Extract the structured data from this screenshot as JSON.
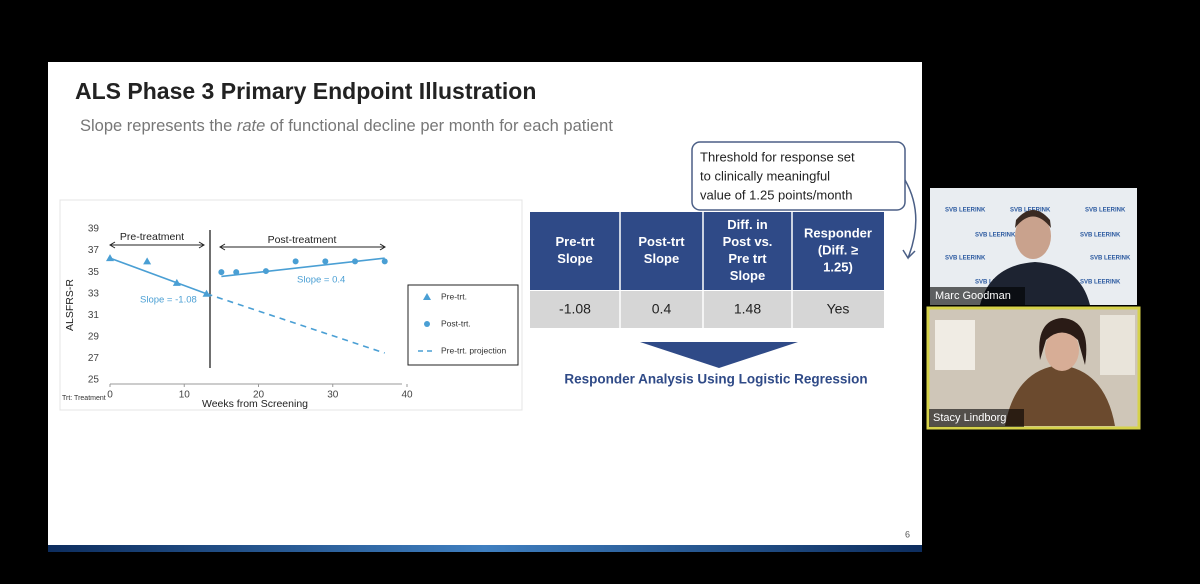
{
  "slide": {
    "title": "ALS Phase 3 Primary Endpoint Illustration",
    "subtitle": [
      "Slope represents the ",
      "rate",
      " of functional decline per month for each patient"
    ],
    "page_number": "6",
    "callout": [
      "Threshold for response set",
      "to clinically meaningful",
      "value of 1.25 points/month"
    ],
    "table": {
      "header": [
        [
          "Pre-trt",
          "Slope"
        ],
        [
          "Post-trt",
          "Slope"
        ],
        [
          "Diff. in",
          "Post vs.",
          "Pre trt",
          "Slope"
        ],
        [
          "Responder",
          "(Diff. ≥",
          "1.25)"
        ]
      ],
      "rows": [
        [
          "-1.08",
          "0.4",
          "1.48",
          "Yes"
        ]
      ]
    },
    "conclusion": "Responder Analysis Using Logistic Regression"
  },
  "chart_data": {
    "type": "scatter",
    "y_label": "ALSFRS-R",
    "x_label": "Weeks from Screening",
    "footnote": "Trt: Treatment",
    "annotations": [
      "Pre-treatment",
      "Post-treatment",
      "Slope = -1.08",
      "Slope = 0.4"
    ],
    "xlim": [
      0,
      40
    ],
    "xticks": [
      0,
      10,
      20,
      30,
      40
    ],
    "ylim": [
      25,
      39
    ],
    "yticks": [
      25,
      27,
      29,
      31,
      33,
      35,
      37,
      39
    ],
    "series": [
      {
        "name": "Pre-trt.",
        "color": "#4a9fd4",
        "marker": "triangle",
        "x": [
          0,
          5,
          9,
          13
        ],
        "values": [
          36.3,
          36.0,
          34.0,
          33.0
        ]
      },
      {
        "name": "Post-trt.",
        "color": "#4a9fd4",
        "marker": "circle",
        "x": [
          15,
          17,
          21,
          25,
          29,
          33,
          37
        ],
        "values": [
          35.0,
          35.0,
          35.1,
          36.0,
          36.0,
          36.0,
          36.0
        ]
      },
      {
        "name": "Pre-trt. projection",
        "color": "#4a9fd4",
        "line_style": "dashed",
        "x": [
          13,
          37
        ],
        "values": [
          33.0,
          27.5
        ]
      }
    ],
    "fit_lines": [
      {
        "color": "#4a9fd4",
        "x": [
          0,
          13
        ],
        "values": [
          36.3,
          33.0
        ]
      },
      {
        "color": "#4a9fd4",
        "x": [
          15,
          37
        ],
        "values": [
          34.6,
          36.3
        ]
      }
    ]
  },
  "participants": [
    {
      "name": "Marc Goodman"
    },
    {
      "name": "Stacy Lindborg"
    }
  ],
  "logo_text": "SVB LEERINK"
}
